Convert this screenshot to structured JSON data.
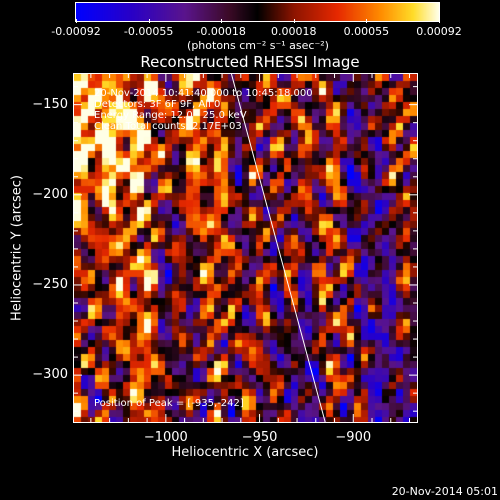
{
  "colorbar": {
    "tick_labels": [
      "-0.00092",
      "-0.00055",
      "-0.00018",
      "0.00018",
      "0.00055",
      "0.00092"
    ],
    "units": "(photons cm⁻² s⁻¹ asec⁻²)",
    "colormap": "blue-purple-red-orange-yellow-white"
  },
  "plot": {
    "title": "Reconstructed RHESSI Image",
    "xlabel": "Heliocentric X (arcsec)",
    "ylabel": "Heliocentric Y (arcsec)",
    "x_tick_labels": [
      "−1000",
      "−950",
      "−900"
    ],
    "y_tick_labels": [
      "−150",
      "−200",
      "−250",
      "−300"
    ],
    "info": [
      "20-Nov-2014 10:41:40.000 to 10:45:18.000",
      "Detectors: 3F 6F 9F, All 0",
      "Energy Range: 12.0 - 25.0 keV",
      "Clean    Total counts: 2.17E+03"
    ],
    "peak_label": "Position of Peak = [-935,-242]"
  },
  "chart_data": {
    "type": "heatmap",
    "title": "Reconstructed RHESSI Image",
    "xlabel": "Heliocentric X (arcsec)",
    "ylabel": "Heliocentric Y (arcsec)",
    "xlim": [
      -1049,
      -866
    ],
    "ylim": [
      -326,
      -133
    ],
    "x_ticks": [
      -1000,
      -950,
      -900
    ],
    "y_ticks": [
      -150,
      -200,
      -250,
      -300
    ],
    "color_range": [
      -0.00092,
      0.00092
    ],
    "limb_line": [
      [
        -965,
        -133
      ],
      [
        -915,
        -326
      ]
    ],
    "peak": [
      -935,
      -242
    ]
  },
  "footer": {
    "date": "20-Nov-2014 05:01"
  }
}
